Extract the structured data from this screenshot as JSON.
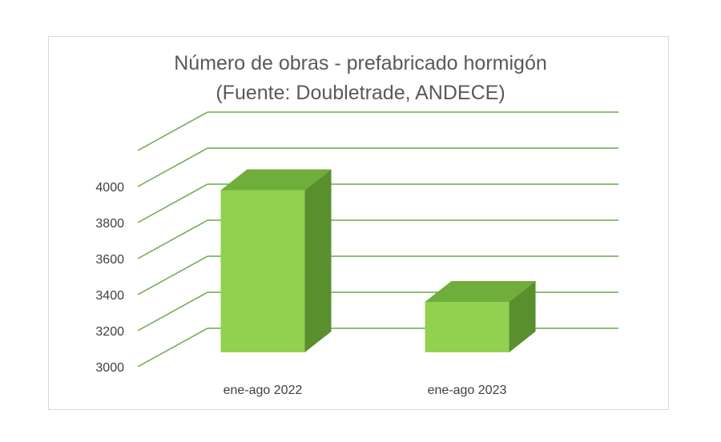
{
  "chart_data": {
    "type": "bar",
    "title": "Número de obras - prefabricado hormigón",
    "subtitle": "(Fuente: Doubletrade, ANDECE)",
    "categories": [
      "ene-ago 2022",
      "ene-ago 2023"
    ],
    "values": [
      3980,
      3360
    ],
    "ylim": [
      3000,
      4200
    ],
    "yticks": [
      "3000",
      "3200",
      "3400",
      "3600",
      "3800",
      "4000"
    ],
    "grid": true,
    "legend": "none",
    "colors": {
      "bar_front": "#92d050",
      "bar_top": "#6fae3a",
      "bar_side": "#5a8f2e",
      "grid": "#6aa84f"
    }
  }
}
